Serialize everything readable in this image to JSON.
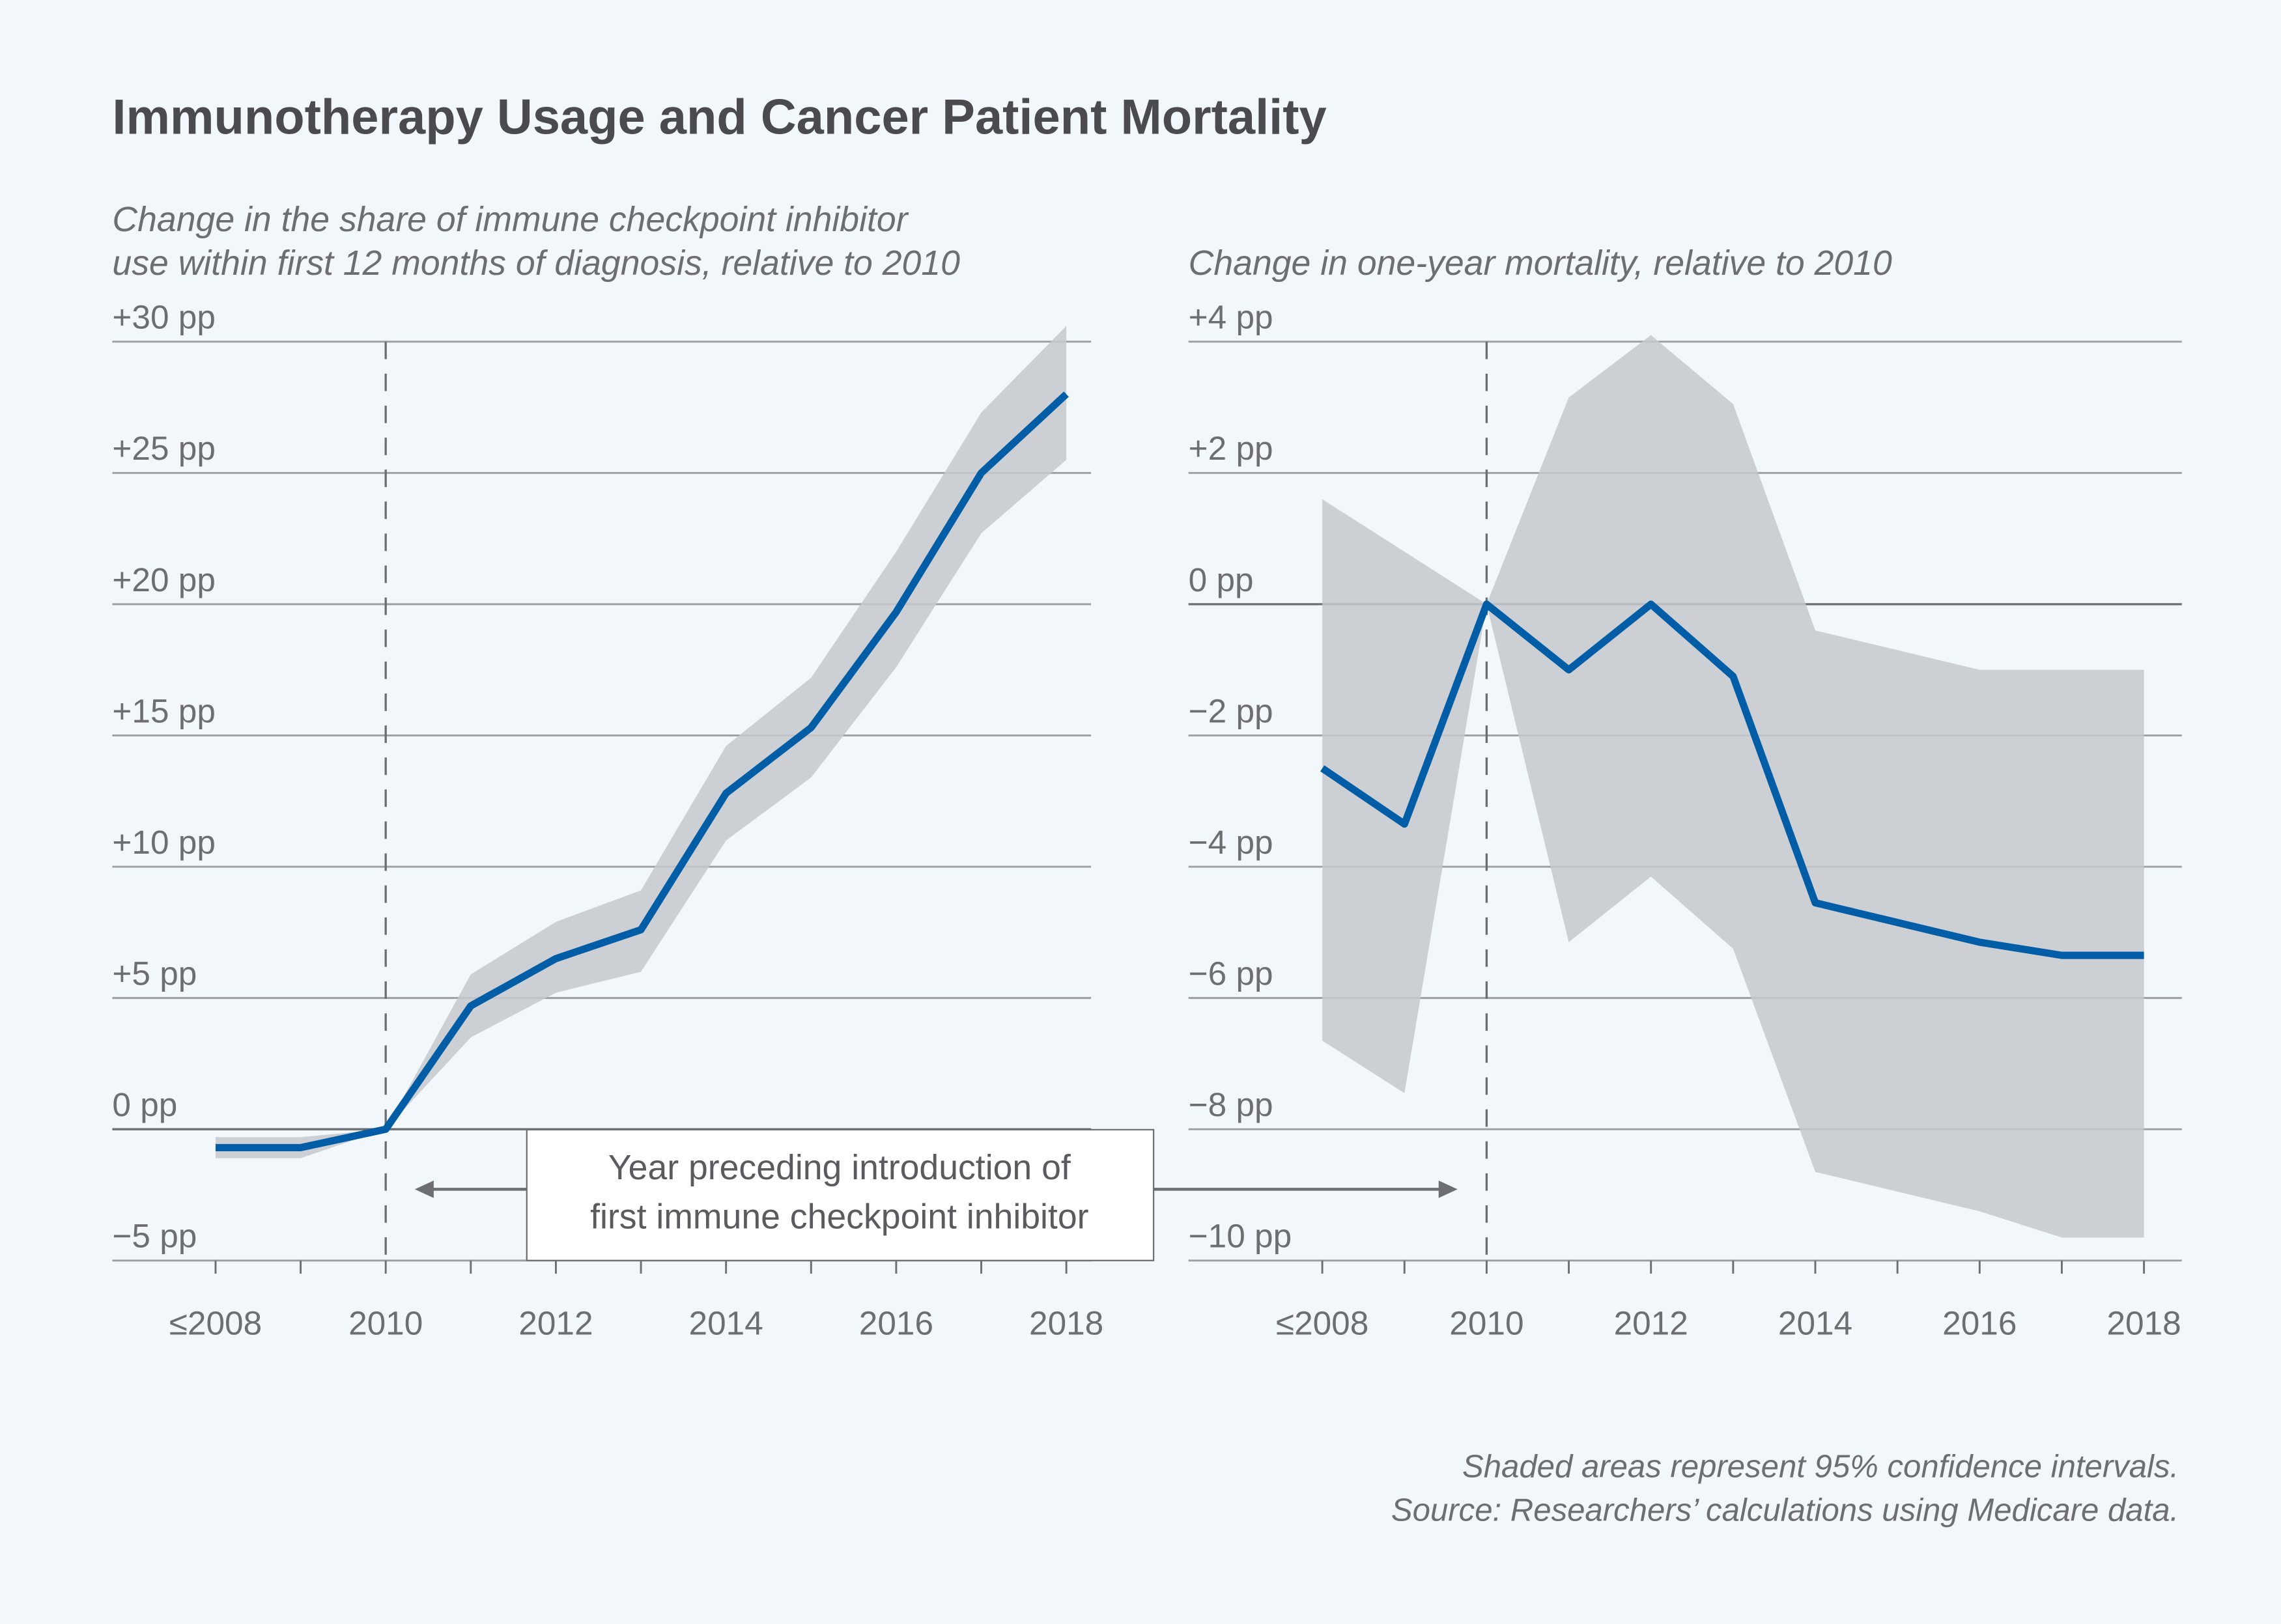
{
  "title": "Immunotherapy Usage and Cancer Patient Mortality",
  "annotation": [
    "Year preceding introduction of",
    "first immune checkpoint inhibitor"
  ],
  "footnote": [
    "Shaded areas represent 95% confidence intervals.",
    "Source: Researchers’ calculations using Medicare data."
  ],
  "colors": {
    "line": "#005da6",
    "band": "#c6c8cc",
    "grid": "#9c9ea3",
    "background": "#f2f7fb"
  },
  "chart_data": [
    {
      "type": "line",
      "subtitle": [
        "Change in the share of immune checkpoint inhibitor",
        "use within first 12 months of diagnosis, relative to 2010"
      ],
      "x": [
        2008,
        2009,
        2010,
        2011,
        2012,
        2013,
        2014,
        2015,
        2016,
        2017,
        2018
      ],
      "xtick_labels": [
        "≤2008",
        "2010",
        "2012",
        "2014",
        "2016",
        "2018"
      ],
      "xtick_values": [
        2008,
        2010,
        2012,
        2014,
        2016,
        2018
      ],
      "ylim": [
        -5,
        30
      ],
      "yticks": [
        30,
        25,
        20,
        15,
        10,
        5,
        0,
        -5
      ],
      "ytick_labels": [
        "+30 pp",
        "+25 pp",
        "+20 pp",
        "+15 pp",
        "+10 pp",
        "+5 pp",
        "0 pp",
        "−5 pp"
      ],
      "reference_year": 2010,
      "y": [
        -0.7,
        -0.7,
        0,
        4.7,
        6.5,
        7.6,
        12.8,
        15.3,
        19.7,
        25.0,
        28.0
      ],
      "ci_upper": [
        -0.3,
        -0.3,
        0,
        5.9,
        7.9,
        9.1,
        14.6,
        17.2,
        22.0,
        27.3,
        30.6
      ],
      "ci_lower": [
        -1.1,
        -1.1,
        0,
        3.5,
        5.2,
        6.0,
        11.0,
        13.4,
        17.6,
        22.7,
        25.5
      ],
      "grid": true
    },
    {
      "type": "line",
      "subtitle": [
        "Change in one-year mortality, relative to 2010"
      ],
      "x": [
        2008,
        2009,
        2010,
        2011,
        2012,
        2013,
        2014,
        2015,
        2016,
        2017,
        2018
      ],
      "xtick_labels": [
        "≤2008",
        "2010",
        "2012",
        "2014",
        "2016",
        "2018"
      ],
      "xtick_values": [
        2008,
        2010,
        2012,
        2014,
        2016,
        2018
      ],
      "ylim": [
        -10,
        4
      ],
      "yticks": [
        4,
        2,
        0,
        -2,
        -4,
        -6,
        -8,
        -10
      ],
      "ytick_labels": [
        "+4 pp",
        "+2 pp",
        "0 pp",
        "−2 pp",
        "−4 pp",
        "−6 pp",
        "−8 pp",
        "−10 pp"
      ],
      "reference_year": 2010,
      "y": [
        -2.5,
        -3.35,
        0,
        -1.0,
        0,
        -1.1,
        -4.55,
        -4.85,
        -5.15,
        -5.35,
        -5.35
      ],
      "ci_upper": [
        1.6,
        0.8,
        0,
        3.15,
        4.1,
        3.05,
        -0.4,
        -0.7,
        -1.0,
        -1.0,
        -1.0
      ],
      "ci_lower": [
        -6.65,
        -7.45,
        0,
        -5.15,
        -4.15,
        -5.25,
        -8.65,
        -8.95,
        -9.25,
        -9.65,
        -9.65
      ],
      "grid": true
    }
  ]
}
